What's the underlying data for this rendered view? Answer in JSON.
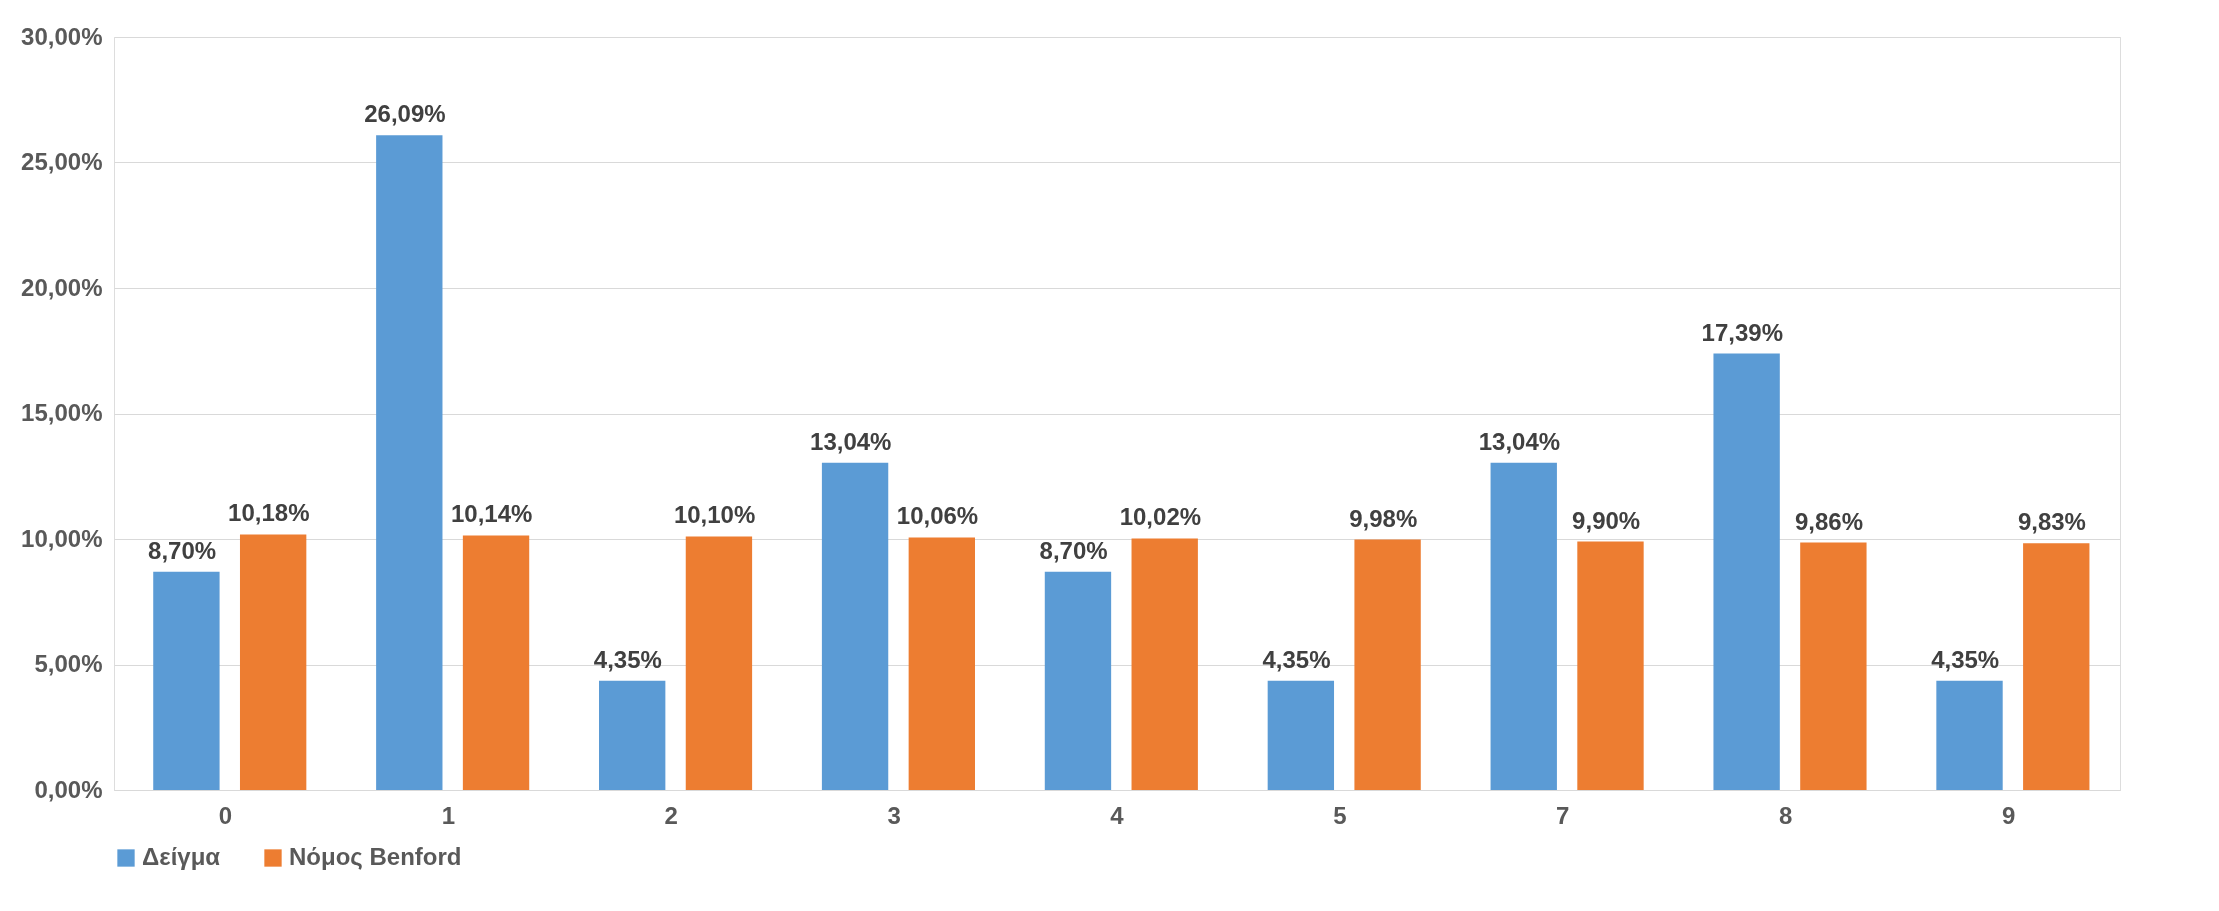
{
  "chart_data": {
    "type": "bar",
    "categories": [
      "0",
      "1",
      "2",
      "3",
      "4",
      "5",
      "7",
      "8",
      "9"
    ],
    "series": [
      {
        "name": "Δείγμα",
        "color": "#5b9bd5",
        "values": [
          8.7,
          26.09,
          4.35,
          13.04,
          8.7,
          4.35,
          13.04,
          17.39,
          4.35
        ],
        "value_labels": [
          "8,70%",
          "26,09%",
          "4,35%",
          "13,04%",
          "8,70%",
          "4,35%",
          "13,04%",
          "17,39%",
          "4,35%"
        ]
      },
      {
        "name": "Νόμος Benford",
        "color": "#ed7d31",
        "values": [
          10.18,
          10.14,
          10.1,
          10.06,
          10.02,
          9.98,
          9.9,
          9.86,
          9.83
        ],
        "value_labels": [
          "10,18%",
          "10,14%",
          "10,10%",
          "10,06%",
          "10,02%",
          "9,98%",
          "9,90%",
          "9,86%",
          "9,83%"
        ]
      }
    ],
    "ylim": [
      0,
      30
    ],
    "yticks": [
      {
        "value": 0,
        "label": "0,00%"
      },
      {
        "value": 5,
        "label": "5,00%"
      },
      {
        "value": 10,
        "label": "10,00%"
      },
      {
        "value": 15,
        "label": "15,00%"
      },
      {
        "value": 20,
        "label": "20,00%"
      },
      {
        "value": 25,
        "label": "25,00%"
      },
      {
        "value": 30,
        "label": "30,00%"
      }
    ],
    "grid": "y",
    "legend": "bottom"
  }
}
